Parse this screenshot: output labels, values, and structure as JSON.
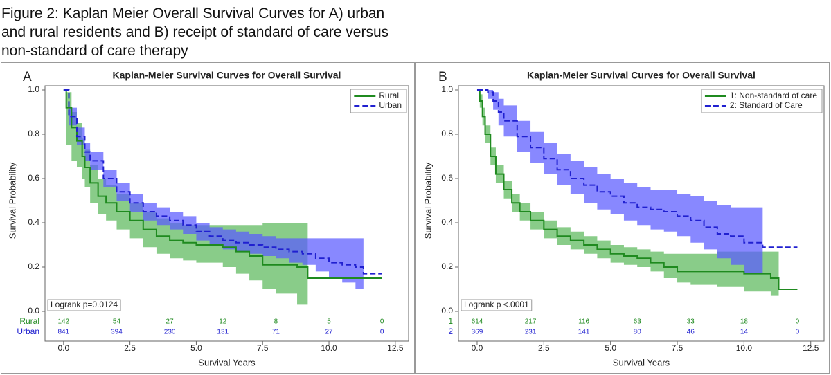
{
  "caption": "Figure 2: Kaplan Meier Overall Survival Curves for A) urban and rural residents and B) receipt of standard of care versus non-standard of care therapy",
  "chart_data": [
    {
      "type": "km",
      "panel": "A",
      "title": "Kaplan-Meier Survival Curves for Overall Survival",
      "xlabel": "Survival Years",
      "ylabel": "Survival Probability",
      "xlim": [
        -0.7,
        13
      ],
      "ylim": [
        0,
        1
      ],
      "xticks": [
        {
          "value": 0,
          "label": "0.0"
        },
        2.5,
        {
          "value": 5,
          "label": "5.0"
        },
        7.5,
        {
          "value": 10,
          "label": "10.0"
        },
        12.5
      ],
      "yticks": [
        {
          "value": 0,
          "label": "0.0"
        },
        0.2,
        0.4,
        0.6,
        0.8,
        {
          "value": 1,
          "label": "1.0"
        }
      ],
      "legend": "top-right",
      "annotation": "Logrank p=0.0124",
      "risk_times": [
        0,
        2,
        4,
        6,
        8,
        10,
        12
      ],
      "series": [
        {
          "name": "Rural",
          "risk_label": "Rural",
          "color": "#1f8a1f",
          "band_color": "#5cb85c",
          "dashed": false,
          "x": [
            0,
            0.1,
            0.3,
            0.5,
            0.7,
            0.8,
            1.0,
            1.3,
            1.6,
            2.0,
            2.5,
            3.0,
            3.5,
            4.0,
            4.5,
            5.0,
            6.0,
            6.5,
            7.0,
            7.5,
            8.0,
            8.8,
            9.2,
            12.0
          ],
          "values": [
            1.0,
            0.92,
            0.83,
            0.77,
            0.7,
            0.65,
            0.58,
            0.52,
            0.49,
            0.45,
            0.41,
            0.37,
            0.34,
            0.32,
            0.31,
            0.3,
            0.29,
            0.27,
            0.25,
            0.21,
            0.21,
            0.2,
            0.15,
            0.15
          ],
          "upper": [
            1.0,
            0.99,
            0.9,
            0.85,
            0.78,
            0.73,
            0.66,
            0.6,
            0.57,
            0.53,
            0.49,
            0.45,
            0.42,
            0.4,
            0.39,
            0.39,
            0.39,
            0.39,
            0.39,
            0.4,
            0.4,
            0.4,
            null,
            null
          ],
          "lower": [
            1.0,
            0.75,
            0.68,
            0.65,
            0.6,
            0.56,
            0.49,
            0.44,
            0.41,
            0.37,
            0.33,
            0.29,
            0.26,
            0.24,
            0.23,
            0.22,
            0.2,
            0.17,
            0.14,
            0.1,
            0.08,
            0.03,
            null,
            null
          ],
          "at_risk": [
            142,
            54,
            27,
            12,
            8,
            5,
            0
          ]
        },
        {
          "name": "Urban",
          "risk_label": "Urban",
          "color": "#2020d0",
          "band_color": "#5a5aff",
          "dashed": true,
          "x": [
            0,
            0.2,
            0.5,
            0.8,
            1.0,
            1.5,
            2.0,
            2.5,
            3.0,
            3.5,
            4.0,
            4.5,
            5.0,
            5.5,
            6.0,
            6.5,
            7.0,
            7.5,
            8.0,
            8.5,
            9.0,
            9.5,
            10.0,
            10.5,
            11.0,
            11.3,
            12.0
          ],
          "values": [
            1.0,
            0.88,
            0.79,
            0.72,
            0.68,
            0.6,
            0.54,
            0.49,
            0.45,
            0.43,
            0.41,
            0.39,
            0.36,
            0.34,
            0.32,
            0.31,
            0.3,
            0.29,
            0.28,
            0.27,
            0.26,
            0.24,
            0.22,
            0.21,
            0.2,
            0.17,
            0.17
          ],
          "upper": [
            1.0,
            0.92,
            0.83,
            0.76,
            0.72,
            0.64,
            0.58,
            0.53,
            0.49,
            0.47,
            0.45,
            0.43,
            0.4,
            0.38,
            0.37,
            0.36,
            0.35,
            0.34,
            0.33,
            0.33,
            0.33,
            0.33,
            0.33,
            0.33,
            0.33,
            null,
            null
          ],
          "lower": [
            1.0,
            0.84,
            0.75,
            0.68,
            0.64,
            0.56,
            0.5,
            0.45,
            0.41,
            0.39,
            0.37,
            0.35,
            0.32,
            0.3,
            0.28,
            0.27,
            0.26,
            0.25,
            0.24,
            0.22,
            0.21,
            0.18,
            0.15,
            0.13,
            0.1,
            null,
            null
          ],
          "at_risk": [
            841,
            394,
            230,
            131,
            71,
            27,
            0
          ]
        }
      ]
    },
    {
      "type": "km",
      "panel": "B",
      "title": "Kaplan-Meier Survival Curves for Overall Survival",
      "xlabel": "Survival Years",
      "ylabel": "Survival Probability",
      "xlim": [
        -0.7,
        13
      ],
      "ylim": [
        0,
        1
      ],
      "xticks": [
        {
          "value": 0,
          "label": "0.0"
        },
        2.5,
        {
          "value": 5,
          "label": "5.0"
        },
        7.5,
        {
          "value": 10,
          "label": "10.0"
        },
        12.5
      ],
      "yticks": [
        {
          "value": 0,
          "label": "0.0"
        },
        0.2,
        0.4,
        0.6,
        0.8,
        {
          "value": 1,
          "label": "1.0"
        }
      ],
      "legend": "top-right",
      "annotation": "Logrank p <.0001",
      "risk_times": [
        0,
        2,
        4,
        6,
        8,
        10,
        12
      ],
      "series": [
        {
          "name": "1: Non-standard of care",
          "risk_label": "1",
          "color": "#1f8a1f",
          "band_color": "#5cb85c",
          "dashed": false,
          "x": [
            0,
            0.1,
            0.2,
            0.3,
            0.5,
            0.7,
            1.0,
            1.3,
            1.6,
            2.0,
            2.5,
            3.0,
            3.5,
            4.0,
            4.5,
            5.0,
            5.5,
            6.0,
            6.5,
            7.0,
            7.5,
            8.0,
            9.0,
            10.0,
            11.0,
            11.3,
            12.0
          ],
          "values": [
            1.0,
            0.95,
            0.88,
            0.8,
            0.7,
            0.62,
            0.55,
            0.49,
            0.45,
            0.41,
            0.37,
            0.34,
            0.32,
            0.3,
            0.28,
            0.26,
            0.25,
            0.24,
            0.22,
            0.2,
            0.18,
            0.18,
            0.18,
            0.17,
            0.15,
            0.1,
            0.1
          ],
          "upper": [
            1.0,
            0.98,
            0.92,
            0.84,
            0.74,
            0.66,
            0.59,
            0.53,
            0.49,
            0.45,
            0.41,
            0.38,
            0.36,
            0.34,
            0.32,
            0.3,
            0.29,
            0.28,
            0.27,
            0.26,
            0.26,
            0.26,
            0.27,
            0.27,
            0.27,
            null,
            null
          ],
          "lower": [
            1.0,
            0.92,
            0.84,
            0.76,
            0.66,
            0.58,
            0.51,
            0.45,
            0.41,
            0.37,
            0.33,
            0.3,
            0.28,
            0.26,
            0.24,
            0.22,
            0.21,
            0.2,
            0.18,
            0.15,
            0.13,
            0.12,
            0.11,
            0.09,
            0.07,
            null,
            null
          ],
          "at_risk": [
            614,
            217,
            116,
            63,
            33,
            18,
            0
          ]
        },
        {
          "name": "2: Standard of Care",
          "risk_label": "2",
          "color": "#2020d0",
          "band_color": "#5a5aff",
          "dashed": true,
          "x": [
            0,
            0.4,
            0.6,
            0.8,
            1.0,
            1.5,
            2.0,
            2.5,
            3.0,
            3.5,
            4.0,
            4.5,
            5.0,
            5.5,
            6.0,
            6.5,
            7.0,
            7.5,
            8.0,
            8.5,
            9.0,
            9.5,
            10.0,
            10.7,
            12.0
          ],
          "values": [
            1.0,
            0.99,
            0.95,
            0.9,
            0.86,
            0.79,
            0.74,
            0.69,
            0.64,
            0.6,
            0.57,
            0.54,
            0.52,
            0.49,
            0.47,
            0.46,
            0.45,
            0.43,
            0.41,
            0.38,
            0.35,
            0.34,
            0.31,
            0.29,
            0.29
          ],
          "upper": [
            1.0,
            1.0,
            0.99,
            0.96,
            0.93,
            0.86,
            0.81,
            0.76,
            0.71,
            0.68,
            0.65,
            0.62,
            0.6,
            0.58,
            0.56,
            0.55,
            0.55,
            0.53,
            0.52,
            0.5,
            0.48,
            0.47,
            0.47,
            null,
            null
          ],
          "lower": [
            1.0,
            0.96,
            0.91,
            0.84,
            0.79,
            0.72,
            0.67,
            0.62,
            0.57,
            0.53,
            0.49,
            0.46,
            0.44,
            0.41,
            0.39,
            0.37,
            0.36,
            0.34,
            0.31,
            0.28,
            0.24,
            0.21,
            0.17,
            null,
            null
          ],
          "at_risk": [
            369,
            231,
            141,
            80,
            46,
            14,
            0
          ]
        }
      ]
    }
  ]
}
